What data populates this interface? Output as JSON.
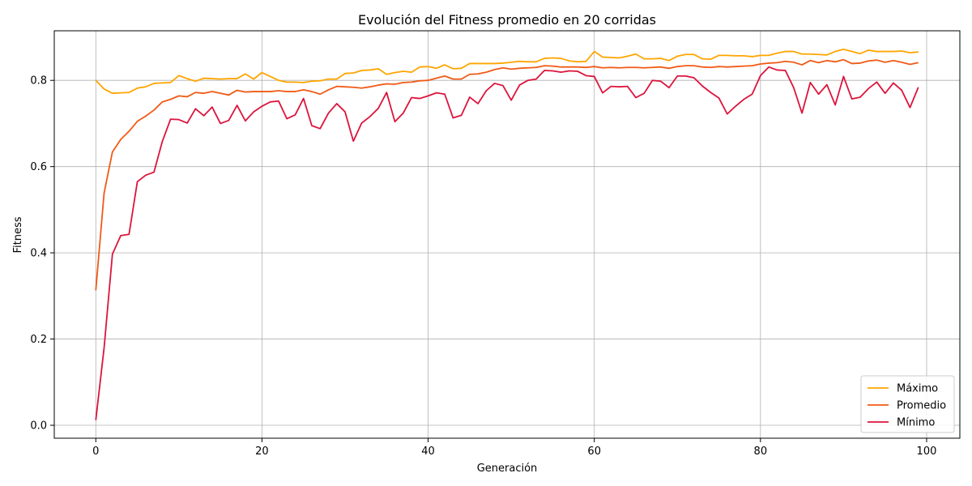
{
  "colors": {
    "max": "#ffa500",
    "avg": "#f05a16",
    "min": "#dc143c",
    "grid": "#b0b0b0",
    "axis": "#000000"
  },
  "chart_data": {
    "type": "line",
    "title": "Evolución del Fitness promedio en 20 corridas",
    "xlabel": "Generación",
    "ylabel": "Fitness",
    "xlim": [
      -5,
      104
    ],
    "ylim": [
      -0.03,
      0.915
    ],
    "xticks": [
      0,
      20,
      40,
      60,
      80,
      100
    ],
    "yticks": [
      0.0,
      0.2,
      0.4,
      0.6,
      0.8
    ],
    "grid": true,
    "legend": "lower-right",
    "series": [
      {
        "name": "Máximo",
        "color_key": "max",
        "values": [
          0.8,
          0.78,
          0.77,
          0.771,
          0.772,
          0.782,
          0.785,
          0.793,
          0.794,
          0.795,
          0.811,
          0.804,
          0.798,
          0.805,
          0.804,
          0.803,
          0.804,
          0.804,
          0.815,
          0.803,
          0.818,
          0.809,
          0.8,
          0.796,
          0.796,
          0.795,
          0.798,
          0.799,
          0.803,
          0.803,
          0.816,
          0.817,
          0.823,
          0.824,
          0.827,
          0.814,
          0.818,
          0.821,
          0.819,
          0.831,
          0.832,
          0.828,
          0.836,
          0.827,
          0.828,
          0.839,
          0.839,
          0.839,
          0.839,
          0.84,
          0.842,
          0.844,
          0.843,
          0.843,
          0.851,
          0.852,
          0.851,
          0.845,
          0.843,
          0.844,
          0.867,
          0.854,
          0.853,
          0.852,
          0.856,
          0.861,
          0.85,
          0.85,
          0.851,
          0.846,
          0.856,
          0.86,
          0.86,
          0.85,
          0.849,
          0.858,
          0.858,
          0.857,
          0.857,
          0.855,
          0.858,
          0.858,
          0.863,
          0.867,
          0.867,
          0.861,
          0.861,
          0.86,
          0.859,
          0.867,
          0.872,
          0.867,
          0.862,
          0.87,
          0.867,
          0.867,
          0.867,
          0.868,
          0.864,
          0.866
        ]
      },
      {
        "name": "Promedio",
        "color_key": "avg",
        "values": [
          0.313,
          0.539,
          0.634,
          0.663,
          0.682,
          0.705,
          0.717,
          0.731,
          0.75,
          0.756,
          0.764,
          0.762,
          0.772,
          0.77,
          0.774,
          0.77,
          0.766,
          0.777,
          0.773,
          0.774,
          0.774,
          0.774,
          0.776,
          0.774,
          0.774,
          0.778,
          0.774,
          0.768,
          0.778,
          0.786,
          0.785,
          0.784,
          0.782,
          0.785,
          0.789,
          0.792,
          0.791,
          0.795,
          0.796,
          0.799,
          0.8,
          0.805,
          0.81,
          0.803,
          0.803,
          0.814,
          0.815,
          0.819,
          0.825,
          0.829,
          0.826,
          0.828,
          0.829,
          0.83,
          0.834,
          0.833,
          0.831,
          0.831,
          0.831,
          0.83,
          0.832,
          0.829,
          0.83,
          0.829,
          0.83,
          0.83,
          0.829,
          0.83,
          0.831,
          0.828,
          0.832,
          0.834,
          0.834,
          0.831,
          0.83,
          0.832,
          0.831,
          0.832,
          0.833,
          0.834,
          0.838,
          0.84,
          0.841,
          0.844,
          0.842,
          0.836,
          0.846,
          0.841,
          0.846,
          0.843,
          0.848,
          0.839,
          0.84,
          0.845,
          0.847,
          0.842,
          0.846,
          0.842,
          0.837,
          0.841
        ]
      },
      {
        "name": "Mínimo",
        "color_key": "min",
        "values": [
          0.012,
          0.18,
          0.397,
          0.44,
          0.443,
          0.565,
          0.58,
          0.587,
          0.658,
          0.71,
          0.709,
          0.701,
          0.734,
          0.718,
          0.738,
          0.7,
          0.707,
          0.742,
          0.706,
          0.727,
          0.74,
          0.75,
          0.752,
          0.711,
          0.72,
          0.758,
          0.695,
          0.688,
          0.724,
          0.746,
          0.727,
          0.659,
          0.701,
          0.716,
          0.735,
          0.772,
          0.704,
          0.724,
          0.76,
          0.758,
          0.764,
          0.771,
          0.768,
          0.713,
          0.719,
          0.761,
          0.746,
          0.776,
          0.793,
          0.788,
          0.754,
          0.789,
          0.8,
          0.803,
          0.823,
          0.822,
          0.819,
          0.822,
          0.821,
          0.811,
          0.809,
          0.771,
          0.786,
          0.785,
          0.786,
          0.76,
          0.77,
          0.8,
          0.798,
          0.783,
          0.81,
          0.81,
          0.806,
          0.787,
          0.772,
          0.759,
          0.722,
          0.74,
          0.756,
          0.768,
          0.811,
          0.831,
          0.824,
          0.823,
          0.783,
          0.724,
          0.795,
          0.768,
          0.79,
          0.743,
          0.809,
          0.757,
          0.761,
          0.781,
          0.796,
          0.77,
          0.794,
          0.777,
          0.737,
          0.784
        ]
      }
    ]
  }
}
